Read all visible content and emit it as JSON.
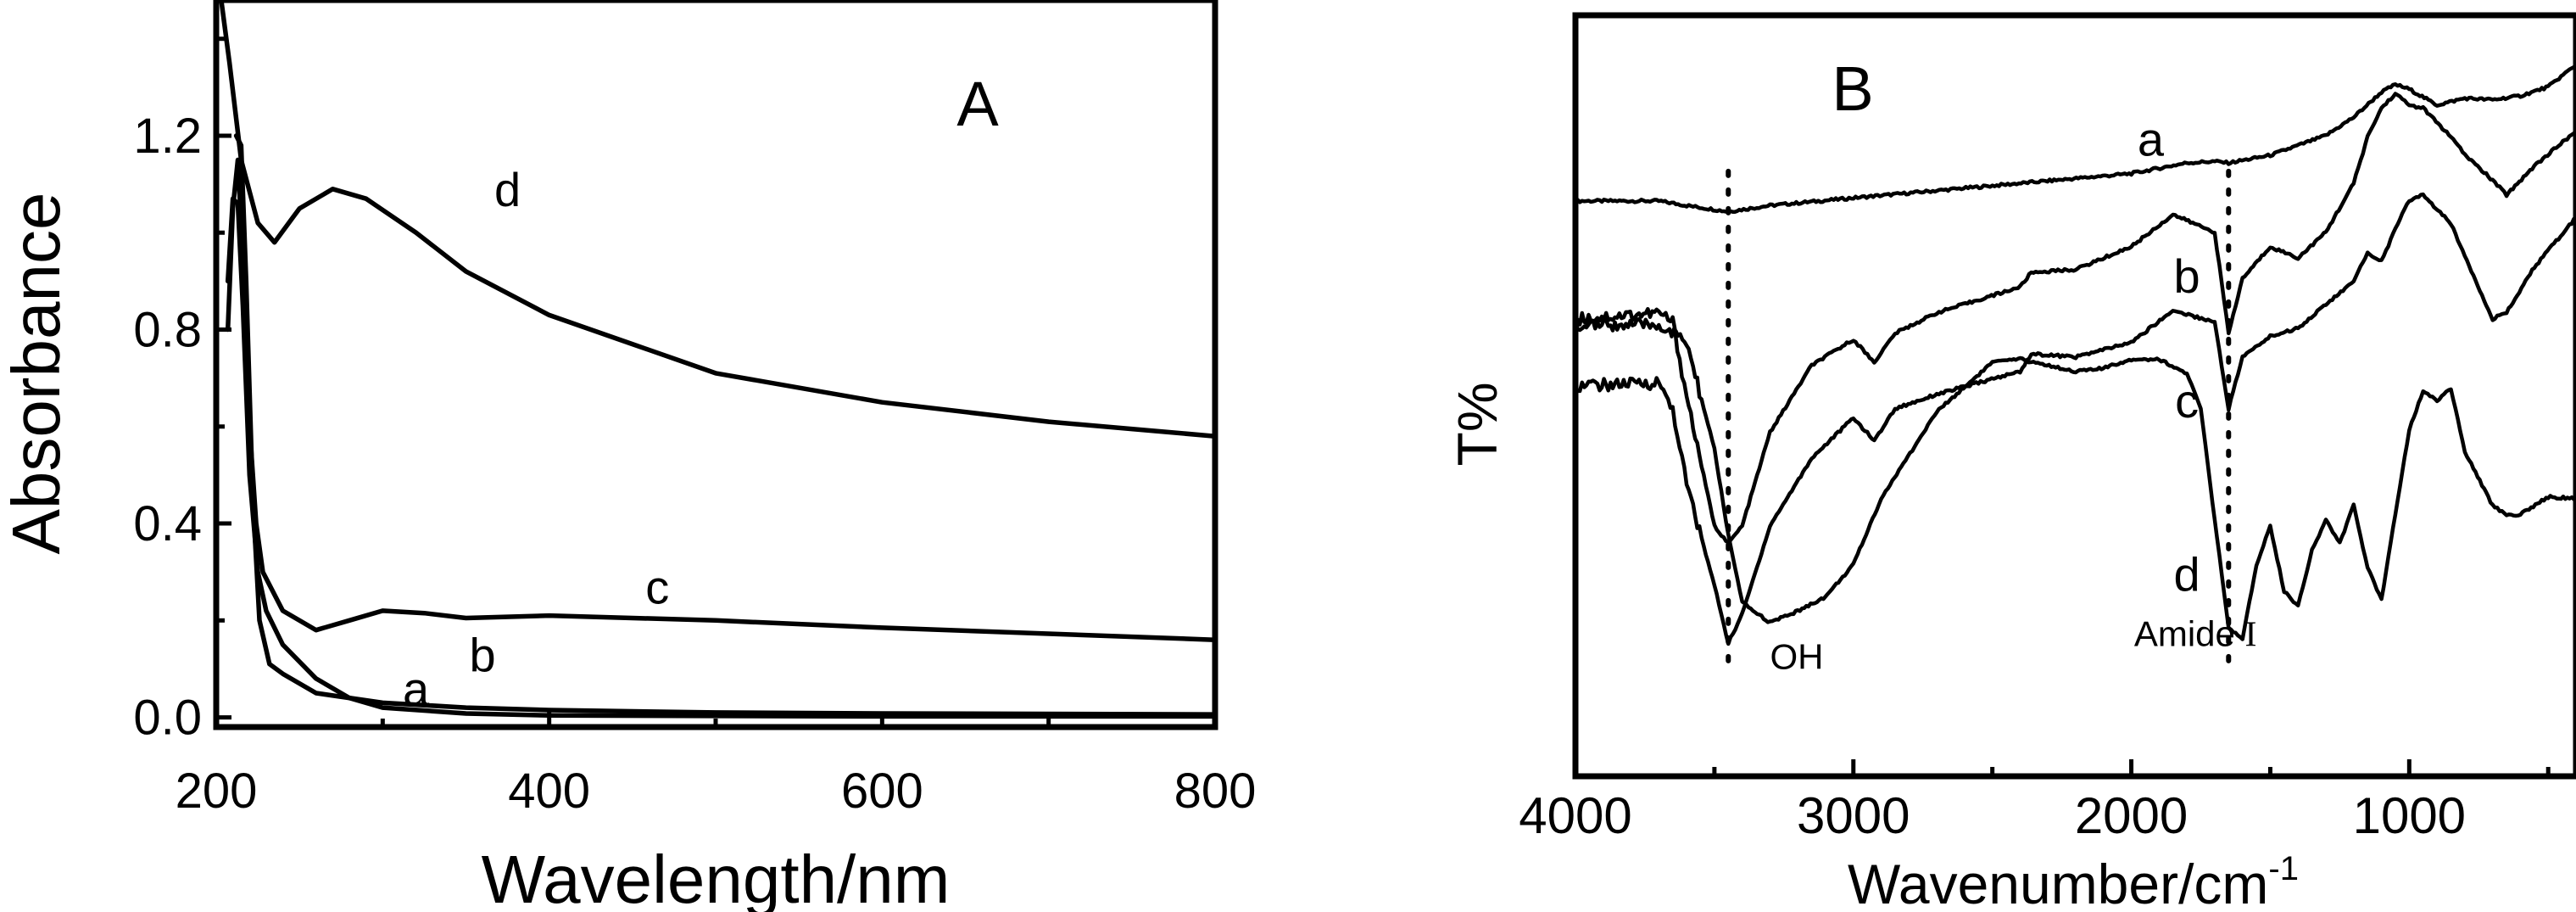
{
  "chart_data": [
    {
      "panel": "A",
      "type": "line",
      "title": "A",
      "xlabel": "Wavelength/nm",
      "ylabel": "Absorbance",
      "xlim": [
        200,
        800
      ],
      "ylim": [
        -0.02,
        1.48
      ],
      "xticks": [
        200,
        400,
        600,
        800
      ],
      "xtick_labels": [
        "200",
        "400",
        "600",
        "800"
      ],
      "yticks": [
        0.0,
        0.4,
        0.8,
        1.2
      ],
      "ytick_labels": [
        "0.0",
        "0.4",
        "0.8",
        "1.2"
      ],
      "series": [
        {
          "name": "a",
          "x": [
            207,
            210,
            213,
            216,
            220,
            225,
            230,
            240,
            260,
            280,
            300,
            350,
            400,
            500,
            600,
            800
          ],
          "y": [
            0.9,
            1.07,
            1.06,
            0.85,
            0.5,
            0.3,
            0.22,
            0.15,
            0.08,
            0.04,
            0.02,
            0.008,
            0.004,
            0.003,
            0.002,
            0.002
          ]
        },
        {
          "name": "b",
          "x": [
            212,
            215,
            218,
            222,
            226,
            232,
            240,
            260,
            300,
            350,
            400,
            500,
            600,
            800
          ],
          "y": [
            1.2,
            1.18,
            0.9,
            0.45,
            0.2,
            0.11,
            0.09,
            0.05,
            0.03,
            0.02,
            0.015,
            0.01,
            0.008,
            0.006
          ]
        },
        {
          "name": "c",
          "x": [
            207,
            210,
            213,
            216,
            220,
            224,
            228,
            240,
            260,
            280,
            300,
            325,
            350,
            400,
            500,
            600,
            800
          ],
          "y": [
            0.8,
            1.05,
            1.15,
            0.95,
            0.6,
            0.4,
            0.3,
            0.22,
            0.18,
            0.2,
            0.22,
            0.215,
            0.205,
            0.21,
            0.2,
            0.185,
            0.16
          ]
        },
        {
          "name": "d",
          "x": [
            203,
            208,
            215,
            225,
            235,
            250,
            270,
            290,
            320,
            350,
            400,
            450,
            500,
            600,
            700,
            800
          ],
          "y": [
            1.48,
            1.35,
            1.15,
            1.02,
            0.98,
            1.05,
            1.09,
            1.07,
            1.0,
            0.92,
            0.83,
            0.77,
            0.71,
            0.65,
            0.61,
            0.58
          ]
        }
      ],
      "curve_labels": [
        {
          "text": "a",
          "x": 320,
          "y": 0.06
        },
        {
          "text": "b",
          "x": 360,
          "y": 0.13
        },
        {
          "text": "c",
          "x": 465,
          "y": 0.27
        },
        {
          "text": "d",
          "x": 375,
          "y": 1.09
        }
      ]
    },
    {
      "panel": "B",
      "type": "line",
      "title": "B",
      "xlabel": "Wavenumber/cm",
      "xlabel_sup": "-1",
      "ylabel": "T%",
      "xlim": [
        4000,
        400
      ],
      "ylim": [
        0,
        100
      ],
      "xticks": [
        4000,
        3000,
        2000,
        1000
      ],
      "xtick_labels": [
        "4000",
        "3000",
        "2000",
        "1000"
      ],
      "series": [
        {
          "name": "a",
          "x": [
            4000,
            3700,
            3600,
            3450,
            3300,
            3000,
            2500,
            2000,
            1800,
            1700,
            1650,
            1500,
            1300,
            1200,
            1100,
            1050,
            1000,
            900,
            800,
            700,
            600,
            500,
            400
          ],
          "y": [
            75.6,
            75.6,
            75.0,
            74.2,
            75.0,
            76.0,
            77.6,
            79.2,
            80.6,
            80.8,
            80.6,
            81.6,
            84.2,
            86.6,
            89.9,
            90.9,
            90.3,
            88.2,
            89.1,
            88.9,
            89.4,
            90.6,
            93.5
          ]
        },
        {
          "name": "b",
          "x": [
            4000,
            3700,
            3650,
            3600,
            3500,
            3450,
            3400,
            3300,
            3150,
            3000,
            2925,
            2850,
            2700,
            2400,
            2360,
            2200,
            2000,
            1850,
            1700,
            1650,
            1600,
            1500,
            1400,
            1300,
            1200,
            1150,
            1100,
            1050,
            1000,
            950,
            850,
            800,
            700,
            650,
            550,
            400
          ],
          "y": [
            60.1,
            60.9,
            59.7,
            50.0,
            32.9,
            30.6,
            32.9,
            45.2,
            54.0,
            57.4,
            54.4,
            58.2,
            60.9,
            64.3,
            66.2,
            66.6,
            69.6,
            73.8,
            71.5,
            58.2,
            65.4,
            69.6,
            68.1,
            71.5,
            77.9,
            84.0,
            87.8,
            89.7,
            88.2,
            87.8,
            84.0,
            81.7,
            78.3,
            76.4,
            80.2,
            84.8
          ]
        },
        {
          "name": "c",
          "x": [
            4000,
            3700,
            3650,
            3600,
            3500,
            3450,
            3400,
            3300,
            3150,
            3000,
            2925,
            2850,
            2700,
            2400,
            2360,
            2200,
            2000,
            1850,
            1700,
            1650,
            1600,
            1500,
            1400,
            1300,
            1200,
            1150,
            1100,
            1050,
            1000,
            950,
            850,
            800,
            700,
            650,
            550,
            400
          ],
          "y": [
            51.3,
            51.7,
            48.3,
            38.4,
            25.1,
            17.5,
            21.3,
            32.9,
            41.8,
            47.1,
            44.1,
            48.3,
            50.2,
            53.2,
            55.5,
            55.1,
            57.0,
            61.2,
            59.7,
            48.3,
            55.1,
            57.8,
            58.9,
            62.0,
            65.0,
            68.8,
            67.7,
            71.9,
            75.7,
            76.4,
            72.6,
            68.4,
            60.1,
            60.9,
            66.9,
            73.4
          ]
        },
        {
          "name": "d",
          "x": [
            4000,
            3700,
            3600,
            3500,
            3450,
            3400,
            3300,
            3200,
            3100,
            3000,
            2900,
            2700,
            2500,
            2400,
            2200,
            2100,
            2000,
            1900,
            1800,
            1750,
            1700,
            1650,
            1600,
            1550,
            1500,
            1450,
            1400,
            1350,
            1300,
            1250,
            1200,
            1150,
            1100,
            1050,
            1000,
            950,
            900,
            850,
            800,
            700,
            650,
            600,
            500,
            400
          ],
          "y": [
            59.3,
            59.3,
            57.0,
            43.0,
            31.7,
            22.8,
            20.2,
            21.7,
            23.6,
            27.8,
            36.5,
            47.9,
            54.4,
            54.8,
            53.2,
            53.6,
            54.8,
            54.8,
            52.9,
            48.3,
            33.7,
            19.5,
            17.9,
            27.8,
            32.9,
            24.3,
            22.4,
            29.7,
            33.7,
            30.6,
            35.6,
            27.4,
            23.2,
            34.5,
            45.6,
            50.6,
            49.4,
            51.0,
            42.6,
            35.6,
            34.4,
            34.4,
            36.7,
            36.5
          ]
        }
      ],
      "curve_labels": [
        {
          "text": "a",
          "x": 1930,
          "y": 83.8
        },
        {
          "text": "b",
          "x": 1800,
          "y": 65.8
        },
        {
          "text": "c",
          "x": 1800,
          "y": 49.4
        },
        {
          "text": "d",
          "x": 1800,
          "y": 26.6
        }
      ],
      "vlines": [
        3450,
        1650
      ],
      "annotations": [
        {
          "text": "OH",
          "x": 3300,
          "y": 15.8
        },
        {
          "text": "Amide ",
          "roman": "I",
          "x": 1990,
          "y": 18.8
        }
      ]
    }
  ]
}
